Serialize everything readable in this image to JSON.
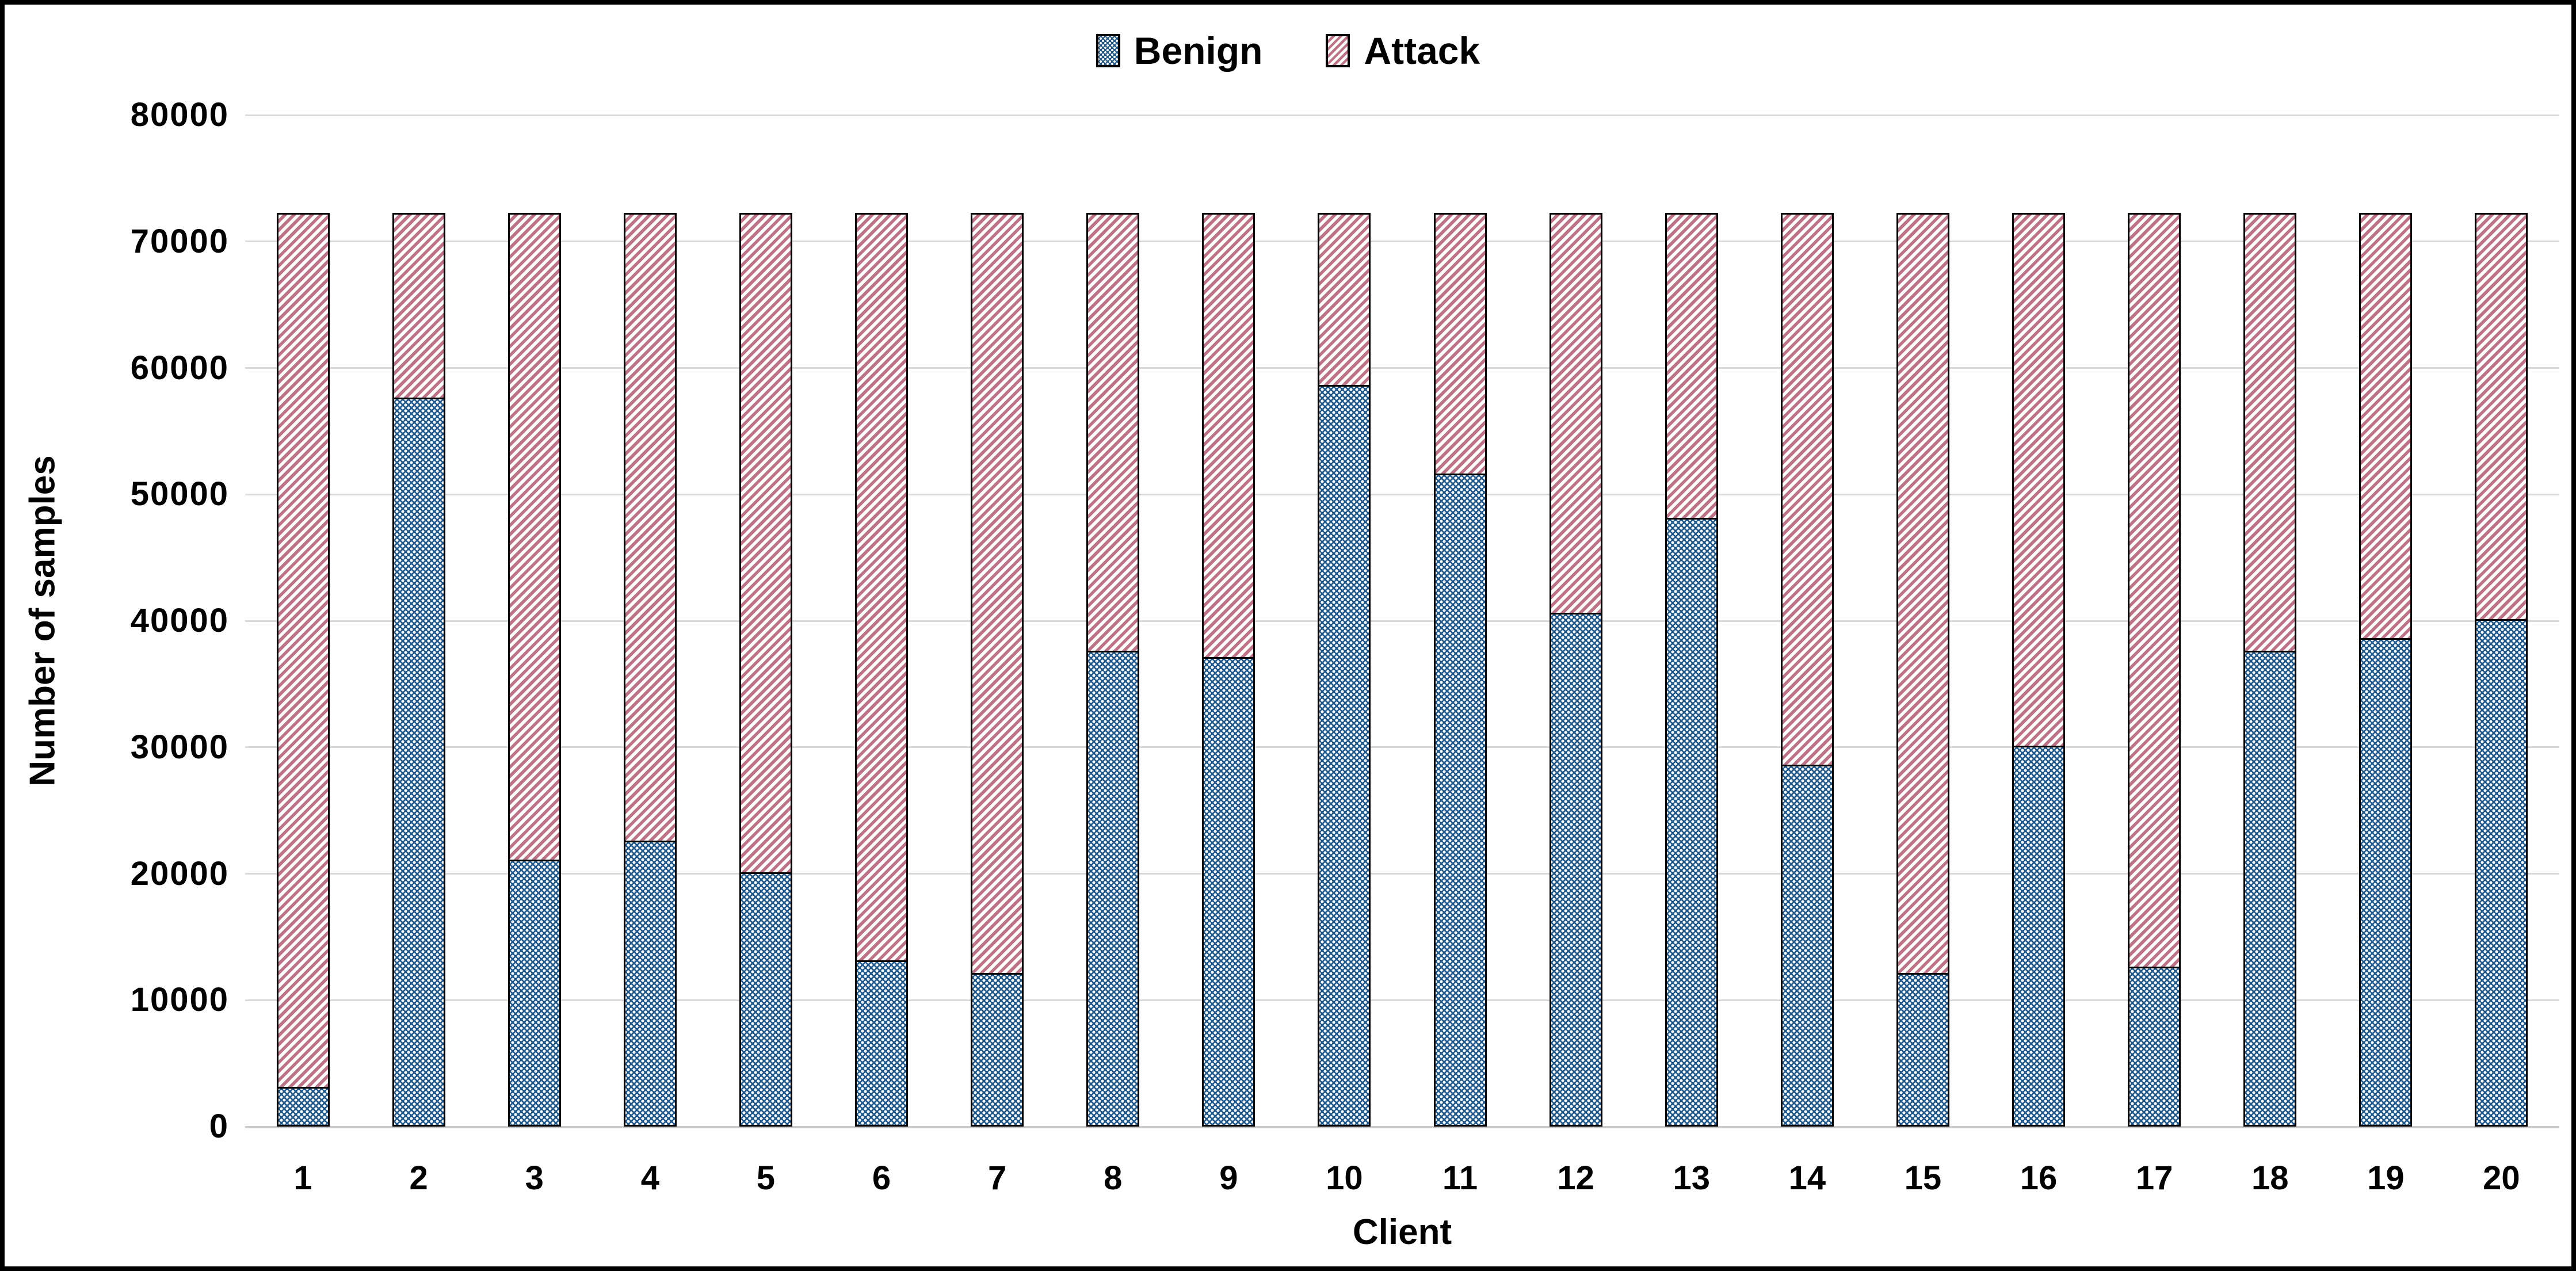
{
  "chart_data": {
    "type": "bar",
    "stacked": true,
    "orientation": "vertical",
    "xlabel": "Client",
    "ylabel": "Number of samples",
    "categories": [
      "1",
      "2",
      "3",
      "4",
      "5",
      "6",
      "7",
      "8",
      "9",
      "10",
      "11",
      "12",
      "13",
      "14",
      "15",
      "16",
      "17",
      "18",
      "19",
      "20"
    ],
    "series": [
      {
        "name": "Benign",
        "color": "#1d578c",
        "pattern": "diagonal-crosshatch-dots",
        "values": [
          3000,
          57500,
          21000,
          22500,
          20000,
          13000,
          12000,
          37500,
          37000,
          58500,
          51500,
          40500,
          48000,
          28500,
          12000,
          30000,
          12500,
          37500,
          38500,
          40000
        ]
      },
      {
        "name": "Attack",
        "color": "#bd7286",
        "pattern": "diagonal-stripes",
        "values": [
          69000,
          14500,
          51000,
          49500,
          52000,
          59000,
          60000,
          34500,
          35000,
          13500,
          20500,
          31500,
          24000,
          43500,
          60000,
          42000,
          59500,
          34500,
          33500,
          32000
        ]
      }
    ],
    "total_per_bar": 72000,
    "ylim": [
      0,
      80000
    ],
    "yticks": [
      0,
      10000,
      20000,
      30000,
      40000,
      50000,
      60000,
      70000,
      80000
    ],
    "grid": true,
    "gridline_color": "#d9d9d9",
    "legend_position": "top-center"
  },
  "legend": {
    "benign_label": "Benign",
    "attack_label": "Attack"
  },
  "colors": {
    "benign_blue": "#1d578c",
    "attack_pink": "#bd7286",
    "frame_black": "#000000",
    "gridline_gray": "#d9d9d9"
  }
}
